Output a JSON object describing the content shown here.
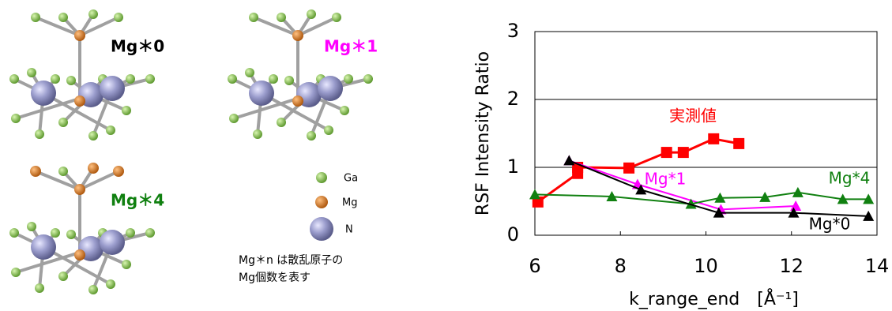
{
  "structures": {
    "labels": [
      "Mg＊0",
      "Mg＊1",
      "Mg＊4"
    ],
    "legend": [
      "Ga",
      "Mg",
      "N"
    ],
    "note": [
      "Mg＊n は散乱原子の",
      "Mg個数を表す"
    ]
  },
  "chart_data": {
    "type": "line",
    "x_label": "k_range_end　[Å⁻¹]",
    "y_label": "RSF Intensity Ratio",
    "xlim": [
      6,
      14
    ],
    "xticks": [
      6,
      8,
      10,
      12,
      14
    ],
    "ylim": [
      0,
      3
    ],
    "yticks": [
      0,
      1,
      2,
      3
    ],
    "grid": true,
    "series": [
      {
        "name": "実測値",
        "color": "#ff0000",
        "marker": "square",
        "x": [
          6.07,
          7.0,
          7.0,
          8.2,
          9.08,
          9.47,
          10.18,
          10.77
        ],
        "values": [
          0.49,
          0.91,
          1.0,
          0.99,
          1.22,
          1.22,
          1.42,
          1.35
        ]
      },
      {
        "name": "Mg*1",
        "color": "#ff00ff",
        "marker": "triangle",
        "x": [
          6.8,
          8.4,
          10.35,
          12.1
        ],
        "values": [
          1.1,
          0.75,
          0.38,
          0.43
        ]
      },
      {
        "name": "Mg*4",
        "color": "#108010",
        "marker": "triangle",
        "x": [
          6.0,
          7.8,
          9.65,
          10.33,
          11.38,
          12.15,
          13.2,
          13.8
        ],
        "values": [
          0.6,
          0.57,
          0.46,
          0.55,
          0.56,
          0.63,
          0.53,
          0.53
        ]
      },
      {
        "name": "Mg*0",
        "color": "#000000",
        "marker": "triangle",
        "x": [
          6.8,
          8.48,
          10.3,
          12.05,
          13.8
        ],
        "values": [
          1.1,
          0.67,
          0.33,
          0.33,
          0.28
        ]
      }
    ]
  }
}
